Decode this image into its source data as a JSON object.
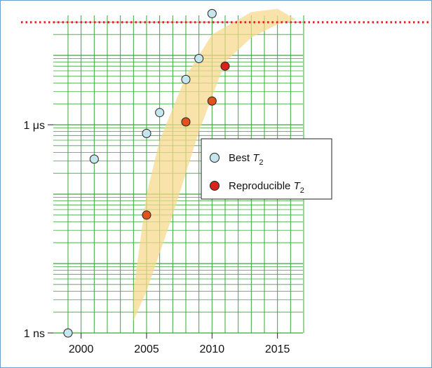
{
  "colors": {
    "frame_border": "#6a9fd0",
    "grid": "#3aa63a",
    "band": "#f7d88a",
    "reference_line": "#e8231f",
    "best_marker": "#c4e6ec",
    "reproducible_marker": "#e0541a",
    "reproducible_marker_recent": "#d8221c"
  },
  "chart_data": {
    "type": "scatter",
    "title": "",
    "xlabel": "",
    "ylabel": "",
    "x_scale": "linear",
    "y_scale": "log",
    "xlim": [
      1998,
      2017
    ],
    "ylim_seconds": [
      1e-09,
      0.0001
    ],
    "x_ticks": [
      2000,
      2005,
      2010,
      2015
    ],
    "x_tick_labels": [
      "2000",
      "2005",
      "2010",
      "2015"
    ],
    "y_tick_values_seconds": [
      1e-09,
      1e-06
    ],
    "y_tick_labels": [
      "1 ns",
      "1 μs"
    ],
    "grid": true,
    "legend_position": "center-right",
    "legend": [
      {
        "key": "best",
        "prefix": "Best ",
        "symbol": "T",
        "subscript": "2"
      },
      {
        "key": "reproducible",
        "prefix": "Reproducible ",
        "symbol": "T",
        "subscript": "2"
      }
    ],
    "series": [
      {
        "key": "best",
        "marker_color": "#c4e6ec",
        "points": [
          {
            "x": 1999,
            "y": 1e-09
          },
          {
            "x": 2001,
            "y": 3.2e-07
          },
          {
            "x": 2005,
            "y": 7.5e-07
          },
          {
            "x": 2006,
            "y": 1.5e-06
          },
          {
            "x": 2008,
            "y": 4.5e-06
          },
          {
            "x": 2009,
            "y": 9e-06
          },
          {
            "x": 2010,
            "y": 4e-05
          }
        ]
      },
      {
        "key": "reproducible",
        "marker_color": "#e0541a",
        "points": [
          {
            "x": 2005,
            "y": 5e-08
          },
          {
            "x": 2008,
            "y": 1.1e-06
          },
          {
            "x": 2010,
            "y": 2.2e-06
          },
          {
            "x": 2011,
            "y": 7e-06,
            "color": "#d8221c"
          }
        ]
      }
    ],
    "reference_line": {
      "y": 3e-05,
      "style": "dotted"
    },
    "shaded_band": {
      "upper": [
        [
          2004,
          4e-09
        ],
        [
          2005,
          1e-07
        ],
        [
          2006,
          6e-07
        ],
        [
          2008,
          5e-06
        ],
        [
          2010,
          2e-05
        ],
        [
          2013,
          4.2e-05
        ],
        [
          2015,
          4.7e-05
        ],
        [
          2016.4,
          3.3e-05
        ]
      ],
      "lower": [
        [
          2016.4,
          3.3e-05
        ],
        [
          2015,
          2.8e-05
        ],
        [
          2013,
          1.8e-05
        ],
        [
          2011,
          8e-06
        ],
        [
          2009,
          8e-07
        ],
        [
          2007,
          5e-08
        ],
        [
          2005,
          4e-09
        ],
        [
          2004,
          1.5e-09
        ]
      ]
    }
  }
}
